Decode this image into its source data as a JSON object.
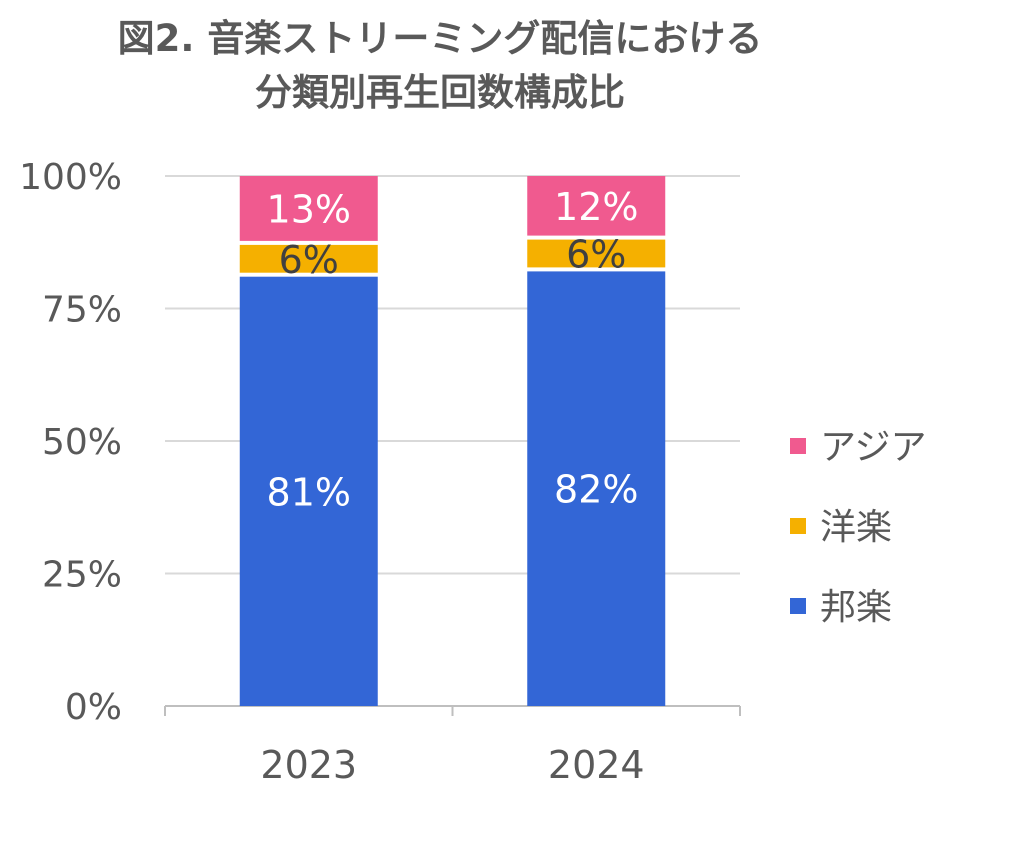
{
  "title_line1": "図2. 音楽ストリーミング配信における",
  "title_line2": "分類別再生回数構成比",
  "chart_data": {
    "type": "bar",
    "stacked": true,
    "title": "図2. 音楽ストリーミング配信における分類別再生回数構成比",
    "categories": [
      "2023",
      "2024"
    ],
    "series": [
      {
        "name": "邦楽",
        "values": [
          81,
          82
        ],
        "labels": [
          "81%",
          "82%"
        ],
        "color": "#3366d6",
        "label_color": "#ffffff"
      },
      {
        "name": "洋楽",
        "values": [
          6,
          6
        ],
        "labels": [
          "6%",
          "6%"
        ],
        "color": "#f5b000",
        "label_color": "#404040"
      },
      {
        "name": "アジア",
        "values": [
          13,
          12
        ],
        "labels": [
          "13%",
          "12%"
        ],
        "color": "#f05a8f",
        "label_color": "#ffffff"
      }
    ],
    "yticks": [
      "0%",
      "25%",
      "50%",
      "75%",
      "100%"
    ],
    "ylim": [
      0,
      100
    ],
    "legend_position": "right",
    "grid": true
  }
}
